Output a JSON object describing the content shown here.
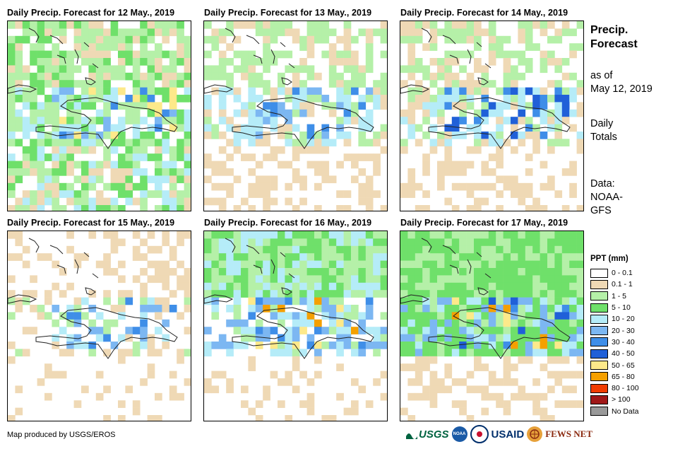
{
  "panels": [
    {
      "title": "Daily Precip. Forecast for 12 May., 2019"
    },
    {
      "title": "Daily Precip. Forecast for 13 May., 2019"
    },
    {
      "title": "Daily Precip. Forecast for 14 May., 2019"
    },
    {
      "title": "Daily Precip. Forecast for 15 May., 2019"
    },
    {
      "title": "Daily Precip. Forecast for 16 May., 2019"
    },
    {
      "title": "Daily Precip. Forecast for 17 May., 2019"
    }
  ],
  "side": {
    "title_line1": "Precip.",
    "title_line2": "Forecast",
    "asof_line1": "as of",
    "asof_line2": "May 12, 2019",
    "totals_line1": "Daily",
    "totals_line2": "Totals",
    "data_line1": "Data:",
    "data_line2": "NOAA-",
    "data_line3": "GFS"
  },
  "legend": {
    "title": "PPT (mm)",
    "items": [
      {
        "label": "0 - 0.1",
        "color": "#ffffff"
      },
      {
        "label": "0.1 - 1",
        "color": "#efd9b5"
      },
      {
        "label": "1 - 5",
        "color": "#b5f0a8"
      },
      {
        "label": "5 - 10",
        "color": "#6fe06a"
      },
      {
        "label": "10 - 20",
        "color": "#b5ecf8"
      },
      {
        "label": "20 - 30",
        "color": "#7cb7f2"
      },
      {
        "label": "30 - 40",
        "color": "#3f8ee8"
      },
      {
        "label": "40 - 50",
        "color": "#2060d8"
      },
      {
        "label": "50 - 65",
        "color": "#fde98a"
      },
      {
        "label": "65 - 80",
        "color": "#f5a000"
      },
      {
        "label": "80 - 100",
        "color": "#f03c00"
      },
      {
        "label": "> 100",
        "color": "#a01818"
      },
      {
        "label": "No Data",
        "color": "#999999"
      }
    ]
  },
  "credit": "Map produced by USGS/EROS",
  "logos": {
    "usgs": "USGS",
    "noaa": "NOAA",
    "usaid": "USAID",
    "fews": "FEWS NET"
  }
}
